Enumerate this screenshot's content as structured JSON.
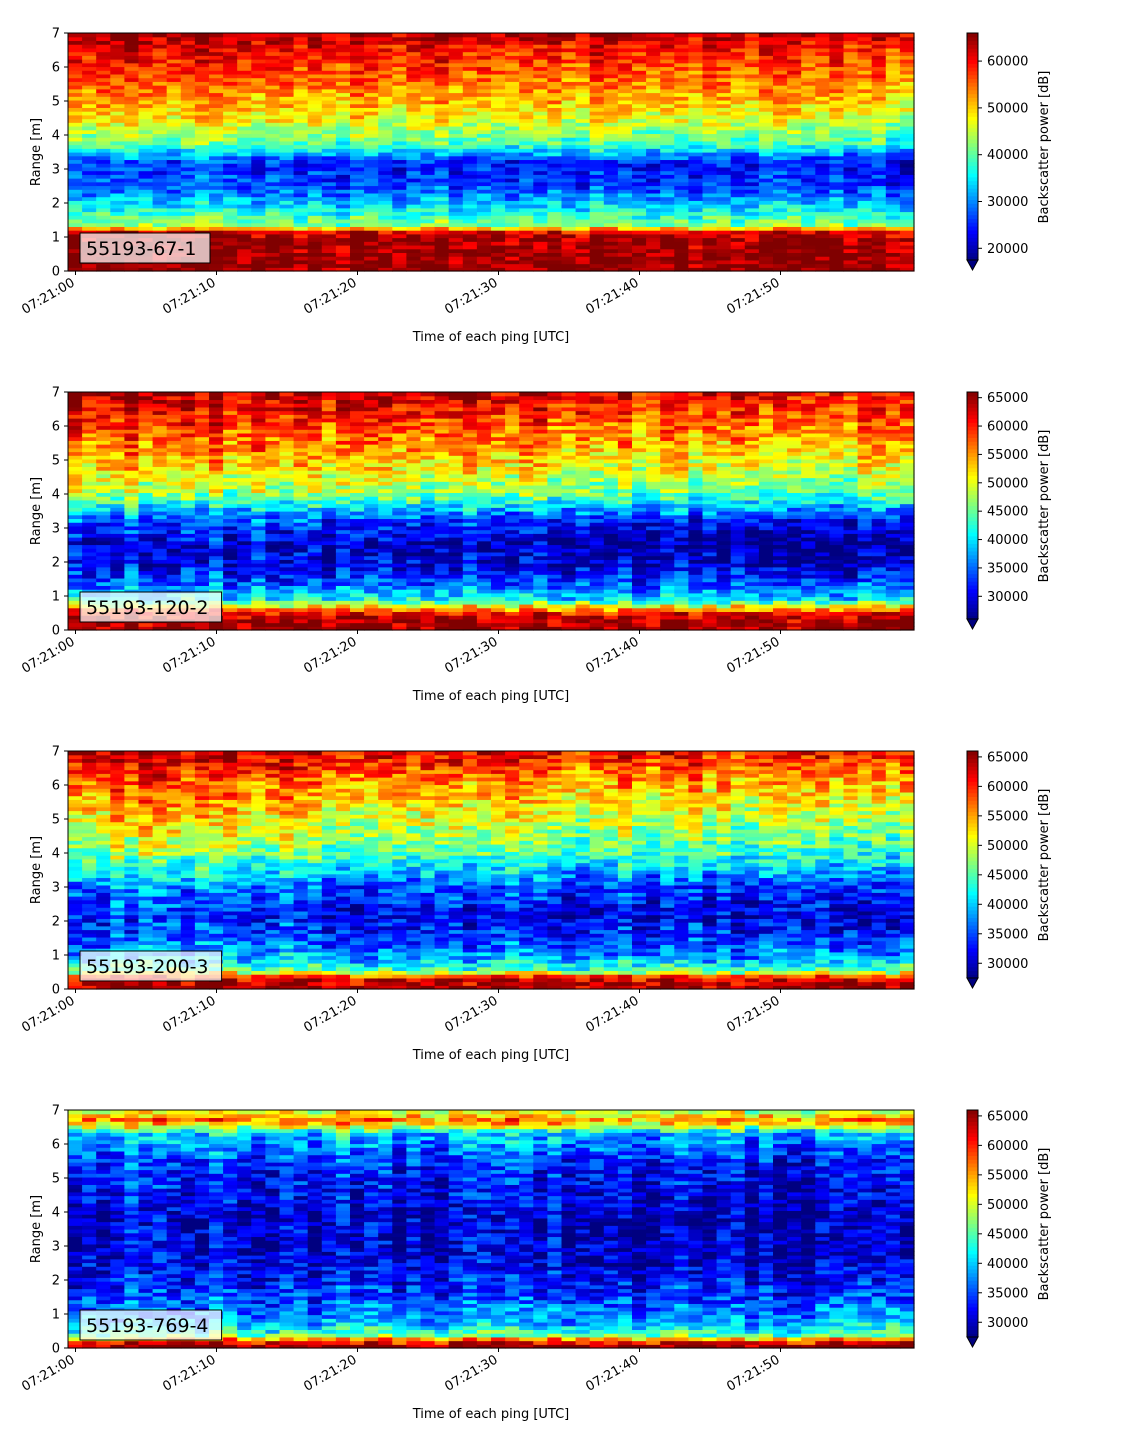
{
  "chart_data": [
    {
      "type": "heatmap",
      "panel_label": "55193-67-1",
      "xlabel": "Time of each ping [UTC]",
      "ylabel": "Range [m]",
      "colorbar_label": "Backscatter power [dB]",
      "colormap": "jet",
      "colorbar_extend": "min",
      "x_range": [
        "07:21:00",
        "07:21:59"
      ],
      "x_ticks": [
        "07:21:00",
        "07:21:10",
        "07:21:20",
        "07:21:30",
        "07:21:40",
        "07:21:50"
      ],
      "ylim": [
        0,
        7
      ],
      "y_ticks": [
        0,
        1,
        2,
        3,
        4,
        5,
        6,
        7
      ],
      "clim": [
        17500,
        66000
      ],
      "colorbar_ticks": [
        20000,
        30000,
        40000,
        50000,
        60000
      ],
      "profile": [
        {
          "range_m": 0.15,
          "value": 65500
        },
        {
          "range_m": 0.6,
          "value": 65500
        },
        {
          "range_m": 1.0,
          "value": 65000
        },
        {
          "range_m": 1.15,
          "value": 62000
        },
        {
          "range_m": 1.35,
          "value": 43000
        },
        {
          "range_m": 1.7,
          "value": 38000
        },
        {
          "range_m": 2.0,
          "value": 34000
        },
        {
          "range_m": 2.5,
          "value": 28000
        },
        {
          "range_m": 3.2,
          "value": 26000
        },
        {
          "range_m": 3.7,
          "value": 40000
        },
        {
          "range_m": 4.5,
          "value": 49000
        },
        {
          "range_m": 5.5,
          "value": 56000
        },
        {
          "range_m": 6.5,
          "value": 61000
        },
        {
          "range_m": 7.0,
          "value": 65500
        }
      ],
      "drift_value_over_time": -3000
    },
    {
      "type": "heatmap",
      "panel_label": "55193-120-2",
      "xlabel": "Time of each ping [UTC]",
      "ylabel": "Range [m]",
      "colorbar_label": "Backscatter power [dB]",
      "colormap": "jet",
      "colorbar_extend": "min",
      "x_range": [
        "07:21:00",
        "07:21:59"
      ],
      "x_ticks": [
        "07:21:00",
        "07:21:10",
        "07:21:20",
        "07:21:30",
        "07:21:40",
        "07:21:50"
      ],
      "ylim": [
        0,
        7
      ],
      "y_ticks": [
        0,
        1,
        2,
        3,
        4,
        5,
        6,
        7
      ],
      "clim": [
        26000,
        66000
      ],
      "colorbar_ticks": [
        30000,
        35000,
        40000,
        45000,
        50000,
        55000,
        60000,
        65000
      ],
      "profile": [
        {
          "range_m": 0.1,
          "value": 65500
        },
        {
          "range_m": 0.45,
          "value": 64000
        },
        {
          "range_m": 0.7,
          "value": 52000
        },
        {
          "range_m": 0.9,
          "value": 42000
        },
        {
          "range_m": 1.3,
          "value": 36000
        },
        {
          "range_m": 1.8,
          "value": 32000
        },
        {
          "range_m": 2.5,
          "value": 30000
        },
        {
          "range_m": 3.3,
          "value": 36000
        },
        {
          "range_m": 4.0,
          "value": 48000
        },
        {
          "range_m": 5.0,
          "value": 55000
        },
        {
          "range_m": 6.0,
          "value": 60000
        },
        {
          "range_m": 7.0,
          "value": 65500
        }
      ],
      "drift_value_over_time": -4500
    },
    {
      "type": "heatmap",
      "panel_label": "55193-200-3",
      "xlabel": "Time of each ping [UTC]",
      "ylabel": "Range [m]",
      "colorbar_label": "Backscatter power [dB]",
      "colormap": "jet",
      "colorbar_extend": "min",
      "x_range": [
        "07:21:00",
        "07:21:59"
      ],
      "x_ticks": [
        "07:21:00",
        "07:21:10",
        "07:21:20",
        "07:21:30",
        "07:21:40",
        "07:21:50"
      ],
      "ylim": [
        0,
        7
      ],
      "y_ticks": [
        0,
        1,
        2,
        3,
        4,
        5,
        6,
        7
      ],
      "clim": [
        27500,
        66000
      ],
      "colorbar_ticks": [
        30000,
        35000,
        40000,
        45000,
        50000,
        55000,
        60000,
        65000
      ],
      "profile": [
        {
          "range_m": 0.1,
          "value": 65500
        },
        {
          "range_m": 0.35,
          "value": 62000
        },
        {
          "range_m": 0.55,
          "value": 46000
        },
        {
          "range_m": 0.9,
          "value": 40000
        },
        {
          "range_m": 1.5,
          "value": 36000
        },
        {
          "range_m": 2.2,
          "value": 34000
        },
        {
          "range_m": 3.0,
          "value": 38000
        },
        {
          "range_m": 4.0,
          "value": 48000
        },
        {
          "range_m": 5.0,
          "value": 53000
        },
        {
          "range_m": 6.0,
          "value": 58000
        },
        {
          "range_m": 7.0,
          "value": 65000
        }
      ],
      "drift_value_over_time": -5000
    },
    {
      "type": "heatmap",
      "panel_label": "55193-769-4",
      "xlabel": "Time of each ping [UTC]",
      "ylabel": "Range [m]",
      "colorbar_label": "Backscatter power [dB]",
      "colormap": "jet",
      "colorbar_extend": "min",
      "x_range": [
        "07:21:00",
        "07:21:59"
      ],
      "x_ticks": [
        "07:21:00",
        "07:21:10",
        "07:21:20",
        "07:21:30",
        "07:21:40",
        "07:21:50"
      ],
      "ylim": [
        0,
        7
      ],
      "y_ticks": [
        0,
        1,
        2,
        3,
        4,
        5,
        6,
        7
      ],
      "clim": [
        27500,
        66000
      ],
      "colorbar_ticks": [
        30000,
        35000,
        40000,
        45000,
        50000,
        55000,
        60000,
        65000
      ],
      "profile": [
        {
          "range_m": 0.1,
          "value": 65500
        },
        {
          "range_m": 0.22,
          "value": 60000
        },
        {
          "range_m": 0.4,
          "value": 45000
        },
        {
          "range_m": 0.8,
          "value": 39000
        },
        {
          "range_m": 1.5,
          "value": 35000
        },
        {
          "range_m": 2.5,
          "value": 32000
        },
        {
          "range_m": 4.0,
          "value": 31500
        },
        {
          "range_m": 5.5,
          "value": 35000
        },
        {
          "range_m": 6.3,
          "value": 41000
        },
        {
          "range_m": 6.7,
          "value": 58000
        },
        {
          "range_m": 7.0,
          "value": 50000
        }
      ],
      "drift_value_over_time": -2500
    }
  ]
}
